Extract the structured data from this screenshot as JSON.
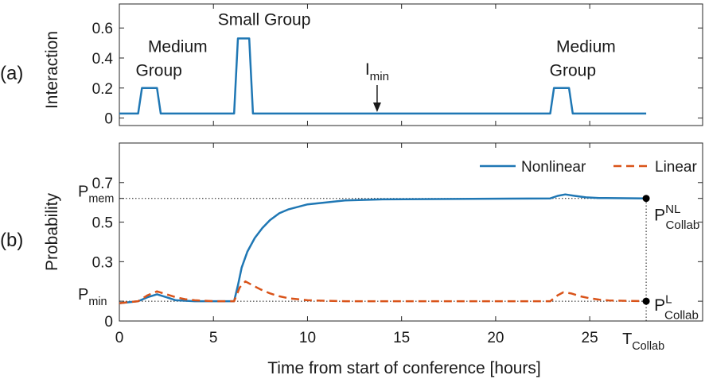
{
  "panel_labels": [
    "(a)",
    "(b)"
  ],
  "colors": {
    "nonlinear": "#1f77b4",
    "linear": "#d95319",
    "axis": "#262626",
    "text": "#1a1a1a"
  },
  "chart_data": [
    {
      "type": "line",
      "panel": "(a)",
      "xlabel": "",
      "ylabel": "Interaction",
      "xlim": [
        0,
        31
      ],
      "ylim": [
        -0.05,
        0.76
      ],
      "yticks": [
        0,
        0.2,
        0.4,
        0.6
      ],
      "ytick_labels": [
        "0",
        "0.2",
        "0.4",
        "0.6"
      ],
      "series": [
        {
          "color": "#1f77b4",
          "x": [
            0,
            1.0,
            1.2,
            2.0,
            2.2,
            6.1,
            6.3,
            6.9,
            7.1,
            22.9,
            23.1,
            23.9,
            24.1,
            28.0
          ],
          "y": [
            0.03,
            0.03,
            0.2,
            0.2,
            0.03,
            0.03,
            0.53,
            0.53,
            0.03,
            0.03,
            0.2,
            0.2,
            0.03,
            0.03
          ]
        }
      ],
      "annotations": [
        {
          "text": "Medium",
          "x": 3.1,
          "y": 0.44
        },
        {
          "text": "Group",
          "x": 2.1,
          "y": 0.28
        },
        {
          "text": "Small Group",
          "x": 7.7,
          "y": 0.62
        },
        {
          "text": "I",
          "sub": "min",
          "x": 13.7,
          "y": 0.29
        },
        {
          "text": "Medium",
          "x": 24.8,
          "y": 0.44
        },
        {
          "text": "Group",
          "x": 24.1,
          "y": 0.28
        }
      ],
      "arrow": {
        "x": 13.7,
        "y_from": 0.22,
        "y_to": 0.04
      }
    },
    {
      "type": "line",
      "panel": "(b)",
      "xlabel": "Time from start of conference [hours]",
      "ylabel": "Probability",
      "xlim": [
        0,
        31
      ],
      "ylim": [
        0,
        0.9
      ],
      "xticks": [
        0,
        5,
        10,
        15,
        20,
        25
      ],
      "xtick_labels": [
        "0",
        "5",
        "10",
        "15",
        "20",
        "25"
      ],
      "yticks": [
        0,
        0.1,
        0.3,
        0.5,
        0.62,
        0.7
      ],
      "ytick_labels": [
        "0",
        "",
        "0.3",
        "0.5",
        "",
        "0.7"
      ],
      "extra_ytick_labels": [
        {
          "text": "P",
          "sub": "min",
          "y": 0.1
        },
        {
          "text": "P",
          "sub": "mem",
          "y": 0.62
        }
      ],
      "extra_xtick_label": {
        "text": "T",
        "sub": "Collab",
        "x": 28
      },
      "series": [
        {
          "name": "Nonlinear",
          "color": "#1f77b4",
          "dash": "solid",
          "x": [
            0,
            0.5,
            1.0,
            1.5,
            2.0,
            2.5,
            3.0,
            4.0,
            5.0,
            6.1,
            6.3,
            6.5,
            6.8,
            7.2,
            7.6,
            8.0,
            8.5,
            9.0,
            10.0,
            11.0,
            12.0,
            14.0,
            22.9,
            23.3,
            23.7,
            24.2,
            24.8,
            25.5,
            28.0
          ],
          "y": [
            0.09,
            0.095,
            0.1,
            0.12,
            0.135,
            0.12,
            0.105,
            0.1,
            0.1,
            0.1,
            0.18,
            0.27,
            0.35,
            0.42,
            0.47,
            0.51,
            0.545,
            0.565,
            0.59,
            0.6,
            0.61,
            0.615,
            0.62,
            0.633,
            0.64,
            0.633,
            0.625,
            0.622,
            0.62
          ]
        },
        {
          "name": "Linear",
          "color": "#d95319",
          "dash": "dashed",
          "x": [
            0,
            1.0,
            1.5,
            2.0,
            2.5,
            3.0,
            3.5,
            4.0,
            5.0,
            6.1,
            6.4,
            6.7,
            7.0,
            7.5,
            8.0,
            8.5,
            9.0,
            10.0,
            12.0,
            22.9,
            23.3,
            23.6,
            24.0,
            24.5,
            25.0,
            25.5,
            26.0,
            28.0
          ],
          "y": [
            0.09,
            0.1,
            0.13,
            0.15,
            0.135,
            0.12,
            0.11,
            0.105,
            0.1,
            0.1,
            0.17,
            0.2,
            0.185,
            0.16,
            0.14,
            0.125,
            0.115,
            0.105,
            0.1,
            0.1,
            0.13,
            0.145,
            0.14,
            0.125,
            0.115,
            0.108,
            0.104,
            0.1
          ]
        }
      ],
      "reference_lines": [
        {
          "y": 0.62,
          "x_to": 28,
          "style": "dotted"
        },
        {
          "y": 0.1,
          "x_to": 28,
          "style": "dotted"
        }
      ],
      "vertical_line": {
        "x": 28,
        "y_from": 0,
        "y_to": 0.62,
        "style": "dotted"
      },
      "endpoints": [
        {
          "x": 28,
          "y": 0.62
        },
        {
          "x": 28,
          "y": 0.1
        }
      ],
      "endpoint_labels": [
        {
          "text": "P",
          "sup": "NL",
          "sub": "Collab",
          "color": "#1f77b4"
        },
        {
          "text": "P",
          "sup": "L",
          "sub": "Collab",
          "color": "#d95319"
        }
      ],
      "legend": {
        "placement": "top-right"
      }
    }
  ]
}
